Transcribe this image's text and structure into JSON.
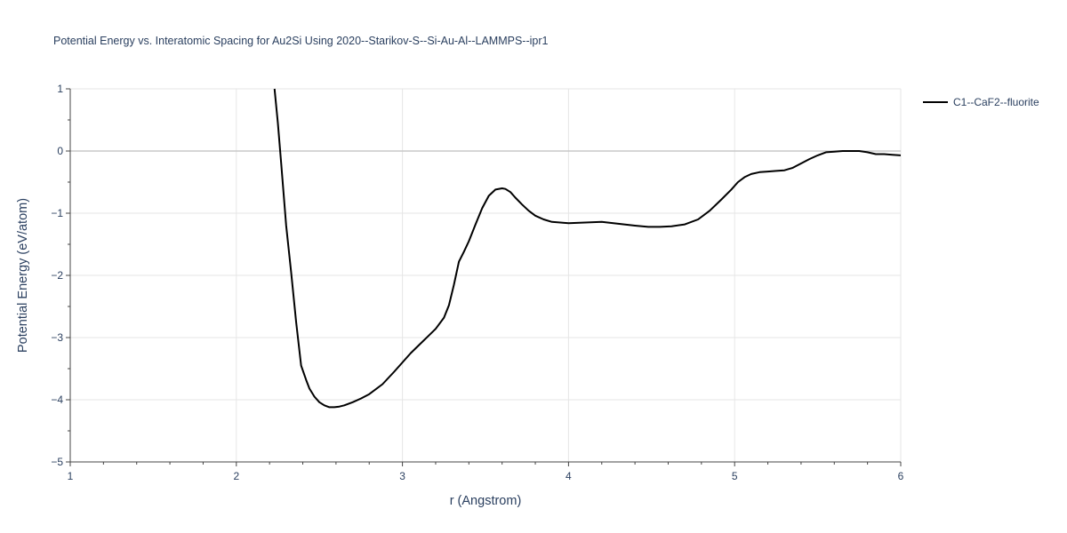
{
  "chart_data": {
    "type": "line",
    "title": "Potential Energy vs. Interatomic Spacing for Au2Si Using 2020--Starikov-S--Si-Au-Al--LAMMPS--ipr1",
    "xlabel": "r (Angstrom)",
    "ylabel": "Potential Energy (eV/atom)",
    "xlim": [
      1,
      6
    ],
    "ylim": [
      -5,
      1
    ],
    "xticks": [
      1,
      2,
      3,
      4,
      5,
      6
    ],
    "yticks": [
      1,
      0,
      -1,
      -2,
      -3,
      -4,
      -5
    ],
    "ytick_labels": [
      "1",
      "0",
      "−1",
      "−2",
      "−3",
      "−4",
      "−5"
    ],
    "grid": true,
    "legend_position": "top-right",
    "series": [
      {
        "name": "C1--CaF2--fluorite",
        "color": "#000000",
        "x": [
          2.23,
          2.25,
          2.27,
          2.3,
          2.33,
          2.36,
          2.39,
          2.42,
          2.44,
          2.47,
          2.5,
          2.53,
          2.56,
          2.59,
          2.62,
          2.65,
          2.7,
          2.75,
          2.8,
          2.88,
          2.95,
          3.0,
          3.05,
          3.1,
          3.15,
          3.2,
          3.25,
          3.28,
          3.31,
          3.34,
          3.37,
          3.4,
          3.44,
          3.48,
          3.52,
          3.56,
          3.6,
          3.62,
          3.65,
          3.68,
          3.72,
          3.76,
          3.8,
          3.85,
          3.9,
          3.95,
          4.0,
          4.1,
          4.2,
          4.3,
          4.4,
          4.48,
          4.55,
          4.62,
          4.7,
          4.78,
          4.85,
          4.92,
          4.98,
          5.02,
          5.06,
          5.1,
          5.15,
          5.2,
          5.25,
          5.3,
          5.35,
          5.4,
          5.45,
          5.5,
          5.55,
          5.6,
          5.65,
          5.7,
          5.75,
          5.8,
          5.85,
          5.9,
          5.95,
          6.0
        ],
        "y": [
          1.0,
          0.45,
          -0.2,
          -1.2,
          -1.95,
          -2.75,
          -3.45,
          -3.68,
          -3.82,
          -3.95,
          -4.04,
          -4.09,
          -4.12,
          -4.12,
          -4.11,
          -4.09,
          -4.04,
          -3.98,
          -3.91,
          -3.75,
          -3.55,
          -3.4,
          -3.25,
          -3.12,
          -2.99,
          -2.86,
          -2.68,
          -2.48,
          -2.15,
          -1.78,
          -1.62,
          -1.45,
          -1.18,
          -0.92,
          -0.72,
          -0.62,
          -0.6,
          -0.61,
          -0.66,
          -0.75,
          -0.86,
          -0.96,
          -1.04,
          -1.1,
          -1.14,
          -1.15,
          -1.16,
          -1.15,
          -1.14,
          -1.17,
          -1.2,
          -1.22,
          -1.22,
          -1.21,
          -1.18,
          -1.1,
          -0.96,
          -0.78,
          -0.62,
          -0.5,
          -0.42,
          -0.37,
          -0.34,
          -0.33,
          -0.32,
          -0.31,
          -0.27,
          -0.2,
          -0.13,
          -0.07,
          -0.02,
          -0.01,
          0.0,
          0.0,
          0.0,
          -0.02,
          -0.05,
          -0.05,
          -0.06,
          -0.07
        ]
      }
    ]
  }
}
